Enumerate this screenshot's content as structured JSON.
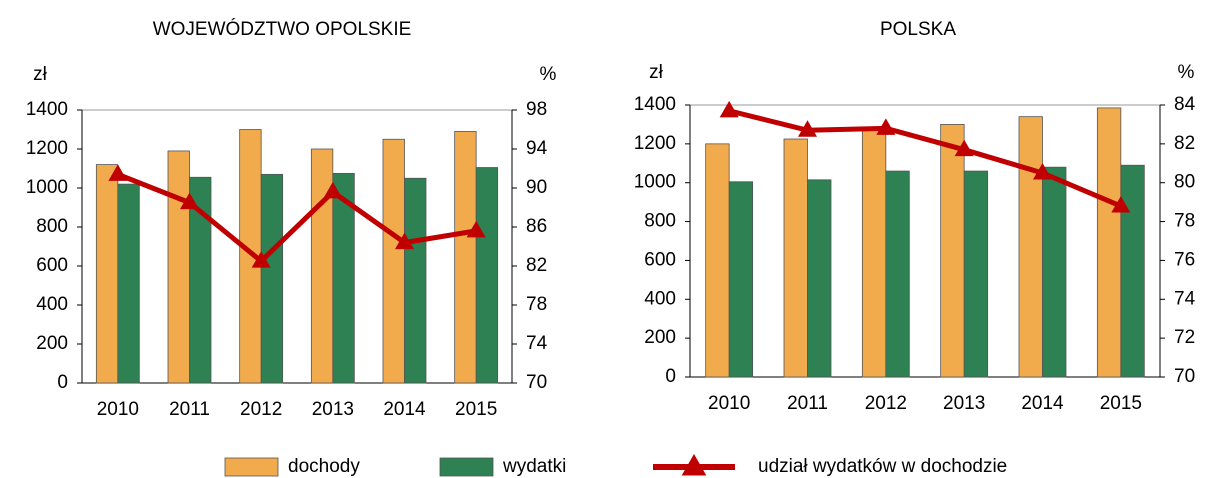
{
  "chart_data": [
    {
      "type": "bar",
      "title": "WOJEWÓDZTWO OPOLSKIE",
      "y_label": "zł",
      "y2_label": "%",
      "categories": [
        "2010",
        "2011",
        "2012",
        "2013",
        "2014",
        "2015"
      ],
      "series": [
        {
          "name": "dochody",
          "type": "bar",
          "color": "#f2ab4c",
          "values": [
            1120,
            1190,
            1300,
            1200,
            1250,
            1290
          ]
        },
        {
          "name": "wydatki",
          "type": "bar",
          "color": "#2d8152",
          "values": [
            1020,
            1055,
            1070,
            1075,
            1050,
            1105
          ]
        },
        {
          "name": "udział wydatków w dochodzie",
          "type": "line",
          "axis": "y2",
          "color": "#c00000",
          "values": [
            91.4,
            88.5,
            82.5,
            89.6,
            84.4,
            85.6
          ]
        }
      ],
      "ylim": [
        0,
        1400
      ],
      "yticks": [
        0,
        200,
        400,
        600,
        800,
        1000,
        1200,
        1400
      ],
      "y2lim": [
        70,
        98
      ],
      "y2ticks": [
        70,
        74,
        78,
        82,
        86,
        90,
        94,
        98
      ]
    },
    {
      "type": "bar",
      "title": "POLSKA",
      "y_label": "zł",
      "y2_label": "%",
      "categories": [
        "2010",
        "2011",
        "2012",
        "2013",
        "2014",
        "2015"
      ],
      "series": [
        {
          "name": "dochody",
          "type": "bar",
          "color": "#f2ab4c",
          "values": [
            1200,
            1225,
            1270,
            1300,
            1340,
            1385
          ]
        },
        {
          "name": "wydatki",
          "type": "bar",
          "color": "#2d8152",
          "values": [
            1005,
            1015,
            1060,
            1060,
            1080,
            1090
          ]
        },
        {
          "name": "udział wydatków w dochodzie",
          "type": "line",
          "axis": "y2",
          "color": "#c00000",
          "values": [
            83.7,
            82.7,
            82.8,
            81.7,
            80.5,
            78.8
          ]
        }
      ],
      "ylim": [
        0,
        1400
      ],
      "yticks": [
        0,
        200,
        400,
        600,
        800,
        1000,
        1200,
        1400
      ],
      "y2lim": [
        70,
        84
      ],
      "y2ticks": [
        70,
        72,
        74,
        76,
        78,
        80,
        82,
        84
      ]
    }
  ]
}
